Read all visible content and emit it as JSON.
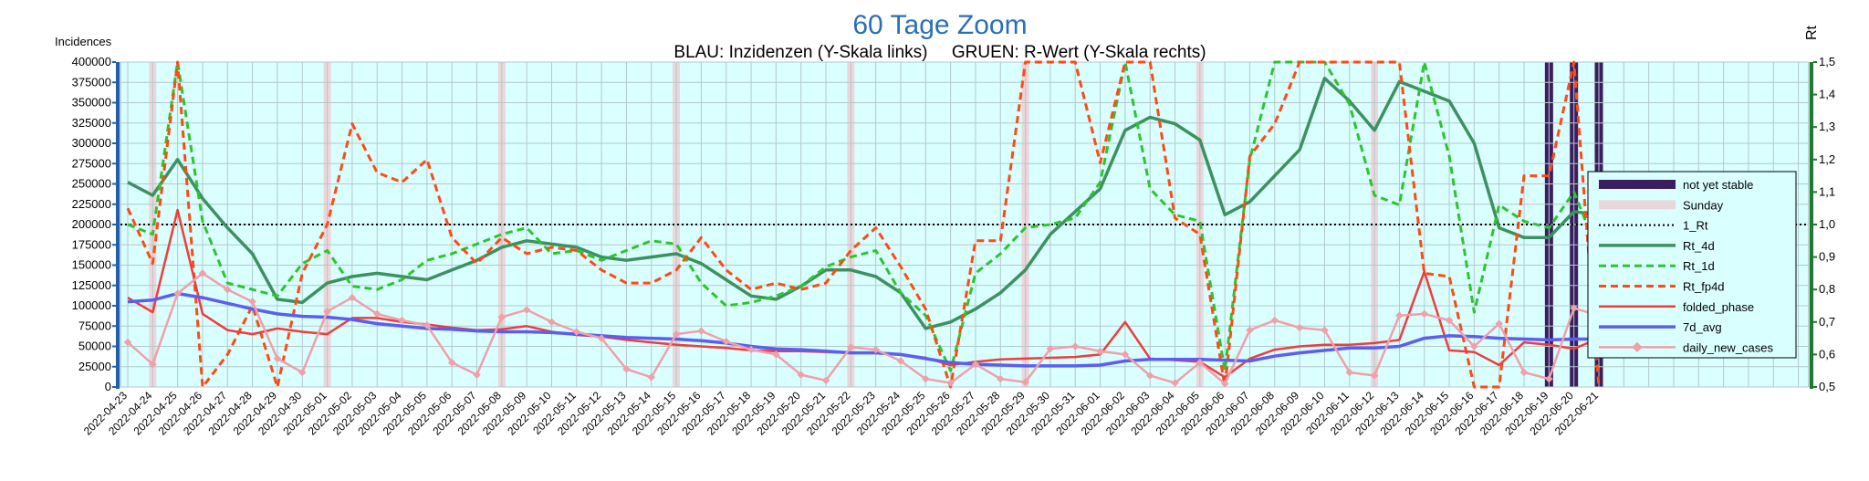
{
  "chart_data": {
    "type": "line",
    "title": "60 Tage Zoom",
    "subtitle": "BLAU: Inzidenzen (Y-Skala links)     GRUEN: R-Wert (Y-Skala rechts)",
    "ylabel_left": "Incidences",
    "ylabel_right": "Rt",
    "ylim_left": [
      0,
      400000
    ],
    "ylim_right": [
      0.5,
      1.5
    ],
    "grid": true,
    "legend_position": "right",
    "yticks_left": [
      "0",
      "25000",
      "50000",
      "75000",
      "100000",
      "125000",
      "150000",
      "175000",
      "200000",
      "225000",
      "250000",
      "275000",
      "300000",
      "325000",
      "350000",
      "375000",
      "400000"
    ],
    "yticks_right": [
      "0,5",
      "0,6",
      "0,7",
      "0,8",
      "0,9",
      "1,0",
      "1,1",
      "1,2",
      "1,3",
      "1,4",
      "1,5"
    ],
    "x": [
      "2022-04-23",
      "2022-04-24",
      "2022-04-25",
      "2022-04-26",
      "2022-04-27",
      "2022-04-28",
      "2022-04-29",
      "2022-04-30",
      "2022-05-01",
      "2022-05-02",
      "2022-05-03",
      "2022-05-04",
      "2022-05-05",
      "2022-05-06",
      "2022-05-07",
      "2022-05-08",
      "2022-05-09",
      "2022-05-10",
      "2022-05-11",
      "2022-05-12",
      "2022-05-13",
      "2022-05-14",
      "2022-05-15",
      "2022-05-16",
      "2022-05-17",
      "2022-05-18",
      "2022-05-19",
      "2022-05-20",
      "2022-05-21",
      "2022-05-22",
      "2022-05-23",
      "2022-05-24",
      "2022-05-25",
      "2022-05-26",
      "2022-05-27",
      "2022-05-28",
      "2022-05-29",
      "2022-05-30",
      "2022-05-31",
      "2022-06-01",
      "2022-06-02",
      "2022-06-03",
      "2022-06-04",
      "2022-06-05",
      "2022-06-06",
      "2022-06-07",
      "2022-06-08",
      "2022-06-09",
      "2022-06-10",
      "2022-06-11",
      "2022-06-12",
      "2022-06-13",
      "2022-06-14",
      "2022-06-15",
      "2022-06-16",
      "2022-06-17",
      "2022-06-18",
      "2022-06-19",
      "2022-06-20",
      "2022-06-21"
    ],
    "sundays": [
      "2022-04-24",
      "2022-05-01",
      "2022-05-08",
      "2022-05-15",
      "2022-05-22",
      "2022-05-29",
      "2022-06-05",
      "2022-06-12",
      "2022-06-19"
    ],
    "not_yet_stable": [
      "2022-06-19",
      "2022-06-20",
      "2022-06-21"
    ],
    "series": [
      {
        "name": "not yet stable",
        "color": "#3b1e5e",
        "style": "band"
      },
      {
        "name": "Sunday",
        "color": "#e8d8dc",
        "style": "band"
      },
      {
        "name": "1_Rt",
        "color": "#000000",
        "style": "dotted",
        "axis": "right",
        "values": [
          1.0,
          1.0,
          1.0,
          1.0,
          1.0,
          1.0,
          1.0,
          1.0,
          1.0,
          1.0,
          1.0,
          1.0,
          1.0,
          1.0,
          1.0,
          1.0,
          1.0,
          1.0,
          1.0,
          1.0,
          1.0,
          1.0,
          1.0,
          1.0,
          1.0,
          1.0,
          1.0,
          1.0,
          1.0,
          1.0,
          1.0,
          1.0,
          1.0,
          1.0,
          1.0,
          1.0,
          1.0,
          1.0,
          1.0,
          1.0,
          1.0,
          1.0,
          1.0,
          1.0,
          1.0,
          1.0,
          1.0,
          1.0,
          1.0,
          1.0,
          1.0,
          1.0,
          1.0,
          1.0,
          1.0,
          1.0,
          1.0,
          1.0,
          1.0,
          1.0
        ]
      },
      {
        "name": "Rt_4d",
        "color": "#3d9160",
        "style": "solid",
        "axis": "right",
        "width": 3.5,
        "values": [
          1.13,
          1.09,
          1.2,
          1.08,
          0.99,
          0.91,
          0.77,
          0.76,
          0.82,
          0.84,
          0.85,
          0.84,
          0.83,
          0.86,
          0.89,
          0.93,
          0.95,
          0.94,
          0.93,
          0.9,
          0.89,
          0.9,
          0.91,
          0.88,
          0.83,
          0.78,
          0.77,
          0.81,
          0.86,
          0.86,
          0.84,
          0.79,
          0.68,
          0.7,
          0.74,
          0.79,
          0.86,
          0.97,
          1.04,
          1.11,
          1.29,
          1.33,
          1.31,
          1.26,
          1.03,
          1.07,
          1.15,
          1.23,
          1.45,
          1.38,
          1.29,
          1.44,
          1.41,
          1.38,
          1.25,
          0.99,
          0.96,
          0.96,
          1.04,
          1.03
        ]
      },
      {
        "name": "Rt_1d",
        "color": "#2ec42e",
        "style": "dashed",
        "axis": "right",
        "width": 3,
        "values": [
          1.0,
          0.97,
          1.5,
          1.01,
          0.82,
          0.8,
          0.78,
          0.88,
          0.92,
          0.81,
          0.8,
          0.83,
          0.89,
          0.91,
          0.94,
          0.97,
          0.99,
          0.91,
          0.92,
          0.89,
          0.92,
          0.95,
          0.94,
          0.82,
          0.75,
          0.76,
          0.78,
          0.81,
          0.87,
          0.9,
          0.92,
          0.79,
          0.72,
          0.55,
          0.85,
          0.91,
          0.99,
          1.0,
          1.02,
          1.13,
          1.5,
          1.11,
          1.03,
          1.01,
          0.55,
          1.2,
          1.5,
          1.5,
          1.5,
          1.37,
          1.09,
          1.06,
          1.5,
          1.21,
          0.73,
          1.06,
          1.01,
          0.99,
          1.1,
          0.91
        ]
      },
      {
        "name": "Rt_fp4d",
        "color": "#ff4a14",
        "style": "dashed",
        "axis": "right",
        "width": 3,
        "values": [
          1.05,
          0.88,
          1.5,
          0.5,
          0.6,
          0.75,
          0.5,
          0.85,
          1.0,
          1.31,
          1.16,
          1.13,
          1.2,
          0.96,
          0.88,
          0.96,
          0.91,
          0.93,
          0.92,
          0.86,
          0.82,
          0.82,
          0.86,
          0.96,
          0.86,
          0.8,
          0.82,
          0.8,
          0.82,
          0.92,
          0.99,
          0.87,
          0.74,
          0.5,
          0.95,
          0.95,
          1.5,
          1.5,
          1.5,
          1.19,
          1.5,
          1.5,
          1.02,
          0.97,
          0.5,
          1.21,
          1.31,
          1.5,
          1.5,
          1.5,
          1.5,
          1.5,
          0.85,
          0.84,
          0.5,
          0.5,
          1.15,
          1.15,
          1.5,
          0.5
        ]
      },
      {
        "name": "folded_phase",
        "color": "#f03c3c",
        "style": "solid",
        "axis": "left",
        "width": 2.5,
        "values": [
          110000,
          92000,
          218000,
          90000,
          70000,
          65000,
          72000,
          68000,
          65000,
          85000,
          85000,
          80000,
          77000,
          73000,
          70000,
          71000,
          75000,
          68000,
          64000,
          62000,
          58000,
          55000,
          52000,
          50000,
          48000,
          45000,
          44000,
          44000,
          43000,
          42000,
          42000,
          40000,
          36000,
          27000,
          31000,
          34000,
          35000,
          36000,
          37000,
          40000,
          80000,
          35000,
          33000,
          31000,
          12000,
          35000,
          46000,
          50000,
          52000,
          52000,
          54000,
          58000,
          142000,
          45000,
          43000,
          27000,
          55000,
          52000,
          47000,
          60000
        ]
      },
      {
        "name": "7d_avg",
        "color": "#5c5ef2",
        "style": "solid",
        "axis": "left",
        "width": 3.5,
        "values": [
          105000,
          107000,
          115000,
          110000,
          103000,
          96000,
          90000,
          87000,
          86000,
          83000,
          78000,
          75000,
          72000,
          71000,
          69000,
          68000,
          68000,
          67000,
          65000,
          63000,
          61000,
          60000,
          59000,
          57000,
          54000,
          50000,
          47000,
          46000,
          44000,
          42000,
          42000,
          40000,
          35000,
          30000,
          28000,
          27000,
          26000,
          26000,
          26000,
          27000,
          32000,
          34000,
          34000,
          34000,
          33000,
          32000,
          38000,
          42000,
          45000,
          48000,
          48000,
          50000,
          60000,
          63000,
          62000,
          60000,
          59000,
          58000,
          59000,
          59000
        ]
      },
      {
        "name": "daily_new_cases",
        "color": "#f0a0a8",
        "style": "solid-marker",
        "axis": "left",
        "width": 2.5,
        "values": [
          55000,
          28000,
          115000,
          140000,
          120000,
          105000,
          35000,
          18000,
          93000,
          110000,
          90000,
          82000,
          76000,
          30000,
          15000,
          86000,
          95000,
          80000,
          68000,
          60000,
          22000,
          12000,
          65000,
          69000,
          56000,
          46000,
          40000,
          15000,
          8000,
          49000,
          46000,
          32000,
          10000,
          5000,
          28000,
          10000,
          6000,
          47000,
          50000,
          44000,
          40000,
          14000,
          5000,
          30000,
          4000,
          70000,
          82000,
          73000,
          70000,
          18000,
          14000,
          88000,
          90000,
          82000,
          50000,
          78000,
          18000,
          10000,
          97000,
          88000
        ]
      }
    ]
  }
}
